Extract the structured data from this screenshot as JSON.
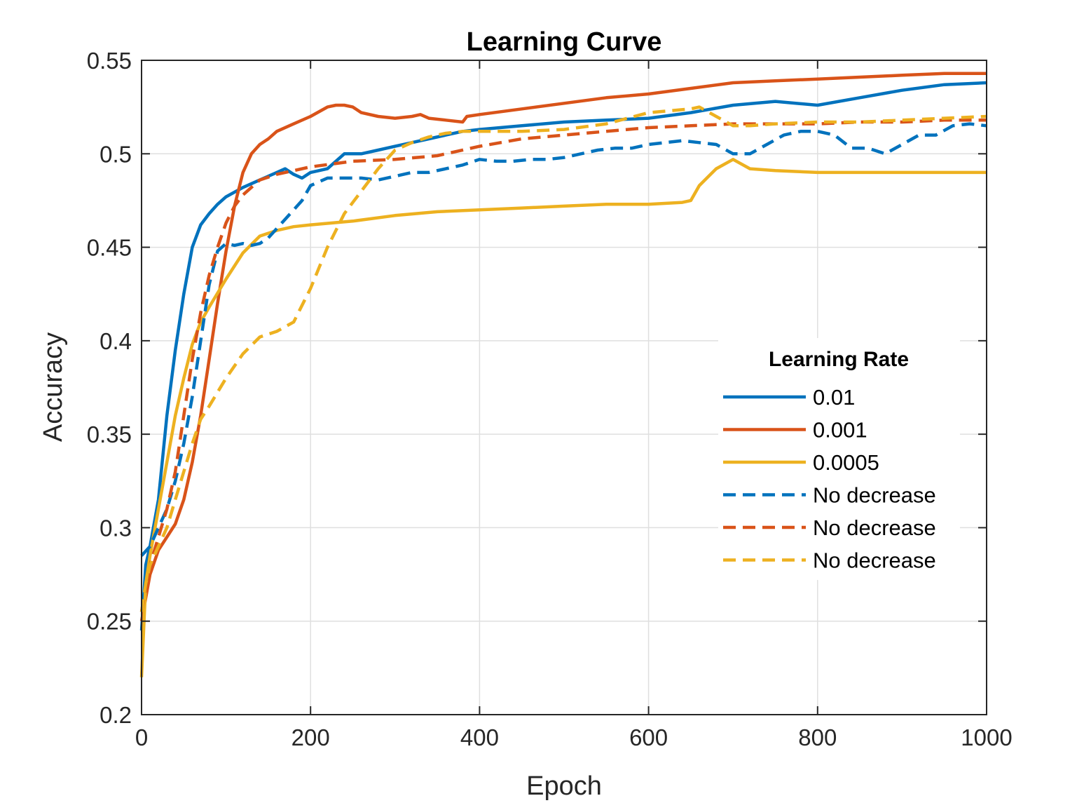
{
  "chart_data": {
    "type": "line",
    "title": "Learning Curve",
    "xlabel": "Epoch",
    "ylabel": "Accuracy",
    "xlim": [
      0,
      1000
    ],
    "ylim": [
      0.2,
      0.55
    ],
    "xticks": [
      0,
      200,
      400,
      600,
      800,
      1000
    ],
    "xtick_labels": [
      "0",
      "200",
      "400",
      "600",
      "800",
      "1000"
    ],
    "yticks": [
      0.2,
      0.25,
      0.3,
      0.35,
      0.4,
      0.45,
      0.5,
      0.55
    ],
    "ytick_labels": [
      "0.2",
      "0.25",
      "0.3",
      "0.35",
      "0.4",
      "0.45",
      "0.5",
      "0.55"
    ],
    "grid": true,
    "legend": {
      "title": "Learning Rate",
      "location": "right"
    },
    "series": [
      {
        "name": "0.01",
        "color": "#0072BD",
        "style": "solid",
        "x": [
          0,
          5,
          10,
          20,
          30,
          40,
          50,
          60,
          70,
          80,
          90,
          100,
          120,
          140,
          160,
          170,
          180,
          190,
          200,
          220,
          240,
          260,
          280,
          300,
          320,
          340,
          360,
          380,
          400,
          450,
          500,
          550,
          600,
          650,
          700,
          750,
          800,
          850,
          900,
          950,
          1000
        ],
        "y": [
          0.245,
          0.28,
          0.29,
          0.315,
          0.36,
          0.395,
          0.425,
          0.45,
          0.462,
          0.468,
          0.473,
          0.477,
          0.482,
          0.486,
          0.49,
          0.492,
          0.489,
          0.487,
          0.49,
          0.492,
          0.5,
          0.5,
          0.502,
          0.504,
          0.506,
          0.508,
          0.51,
          0.512,
          0.513,
          0.515,
          0.517,
          0.518,
          0.519,
          0.522,
          0.526,
          0.528,
          0.526,
          0.53,
          0.534,
          0.537,
          0.538
        ]
      },
      {
        "name": "0.001",
        "color": "#D95319",
        "style": "solid",
        "x": [
          0,
          10,
          20,
          30,
          40,
          50,
          60,
          70,
          80,
          90,
          100,
          110,
          120,
          130,
          140,
          150,
          160,
          180,
          200,
          220,
          230,
          240,
          250,
          260,
          280,
          300,
          320,
          330,
          340,
          360,
          380,
          385,
          400,
          450,
          500,
          550,
          600,
          650,
          700,
          750,
          800,
          850,
          900,
          950,
          1000
        ],
        "y": [
          0.25,
          0.275,
          0.288,
          0.295,
          0.302,
          0.315,
          0.335,
          0.36,
          0.39,
          0.42,
          0.448,
          0.472,
          0.49,
          0.5,
          0.505,
          0.508,
          0.512,
          0.516,
          0.52,
          0.525,
          0.526,
          0.526,
          0.525,
          0.522,
          0.52,
          0.519,
          0.52,
          0.521,
          0.519,
          0.518,
          0.517,
          0.52,
          0.521,
          0.524,
          0.527,
          0.53,
          0.532,
          0.535,
          0.538,
          0.539,
          0.54,
          0.541,
          0.542,
          0.543,
          0.543
        ]
      },
      {
        "name": "0.0005",
        "color": "#EDB120",
        "style": "solid",
        "x": [
          0,
          5,
          10,
          20,
          30,
          40,
          50,
          60,
          70,
          80,
          100,
          120,
          140,
          160,
          180,
          200,
          250,
          300,
          350,
          400,
          450,
          500,
          550,
          600,
          640,
          650,
          660,
          680,
          700,
          720,
          750,
          800,
          850,
          900,
          950,
          1000
        ],
        "y": [
          0.22,
          0.27,
          0.285,
          0.31,
          0.335,
          0.36,
          0.38,
          0.398,
          0.41,
          0.418,
          0.433,
          0.447,
          0.456,
          0.459,
          0.461,
          0.462,
          0.464,
          0.467,
          0.469,
          0.47,
          0.471,
          0.472,
          0.473,
          0.473,
          0.474,
          0.475,
          0.483,
          0.492,
          0.497,
          0.492,
          0.491,
          0.49,
          0.49,
          0.49,
          0.49,
          0.49
        ]
      },
      {
        "name": "No decrease",
        "color": "#0072BD",
        "style": "dashed",
        "x": [
          0,
          10,
          20,
          30,
          40,
          50,
          60,
          70,
          80,
          90,
          100,
          110,
          120,
          130,
          140,
          150,
          160,
          170,
          180,
          190,
          200,
          220,
          240,
          260,
          280,
          300,
          320,
          340,
          360,
          380,
          400,
          420,
          440,
          460,
          480,
          500,
          520,
          540,
          560,
          580,
          600,
          620,
          640,
          660,
          680,
          700,
          720,
          740,
          760,
          780,
          800,
          820,
          840,
          860,
          880,
          900,
          920,
          940,
          960,
          980,
          1000
        ],
        "y": [
          0.285,
          0.29,
          0.3,
          0.31,
          0.325,
          0.345,
          0.37,
          0.4,
          0.43,
          0.448,
          0.452,
          0.451,
          0.452,
          0.451,
          0.452,
          0.455,
          0.46,
          0.465,
          0.47,
          0.475,
          0.483,
          0.487,
          0.487,
          0.487,
          0.486,
          0.488,
          0.49,
          0.49,
          0.492,
          0.494,
          0.497,
          0.496,
          0.496,
          0.497,
          0.497,
          0.498,
          0.5,
          0.502,
          0.503,
          0.503,
          0.505,
          0.506,
          0.507,
          0.506,
          0.505,
          0.5,
          0.5,
          0.505,
          0.51,
          0.512,
          0.512,
          0.51,
          0.503,
          0.503,
          0.5,
          0.505,
          0.51,
          0.51,
          0.515,
          0.516,
          0.515
        ]
      },
      {
        "name": "No decrease",
        "color": "#D95319",
        "style": "dashed",
        "x": [
          0,
          10,
          20,
          30,
          40,
          50,
          60,
          70,
          80,
          90,
          100,
          110,
          120,
          140,
          160,
          180,
          200,
          250,
          300,
          350,
          400,
          450,
          500,
          550,
          600,
          650,
          700,
          750,
          800,
          850,
          900,
          950,
          1000
        ],
        "y": [
          0.255,
          0.28,
          0.295,
          0.31,
          0.33,
          0.36,
          0.39,
          0.415,
          0.435,
          0.45,
          0.463,
          0.472,
          0.478,
          0.486,
          0.489,
          0.491,
          0.493,
          0.496,
          0.497,
          0.499,
          0.504,
          0.508,
          0.51,
          0.512,
          0.514,
          0.515,
          0.516,
          0.516,
          0.516,
          0.517,
          0.517,
          0.518,
          0.518
        ]
      },
      {
        "name": "No decrease",
        "color": "#EDB120",
        "style": "dashed",
        "x": [
          0,
          5,
          10,
          20,
          30,
          40,
          50,
          60,
          70,
          80,
          100,
          120,
          140,
          160,
          180,
          200,
          220,
          240,
          260,
          280,
          300,
          320,
          340,
          360,
          380,
          400,
          450,
          500,
          550,
          600,
          650,
          660,
          680,
          700,
          720,
          750,
          800,
          850,
          900,
          950,
          1000
        ],
        "y": [
          0.255,
          0.27,
          0.28,
          0.29,
          0.3,
          0.315,
          0.33,
          0.345,
          0.358,
          0.365,
          0.38,
          0.393,
          0.402,
          0.405,
          0.41,
          0.428,
          0.45,
          0.468,
          0.48,
          0.492,
          0.502,
          0.506,
          0.509,
          0.511,
          0.512,
          0.512,
          0.512,
          0.513,
          0.516,
          0.522,
          0.524,
          0.525,
          0.52,
          0.515,
          0.515,
          0.516,
          0.517,
          0.517,
          0.518,
          0.519,
          0.52
        ]
      }
    ]
  }
}
